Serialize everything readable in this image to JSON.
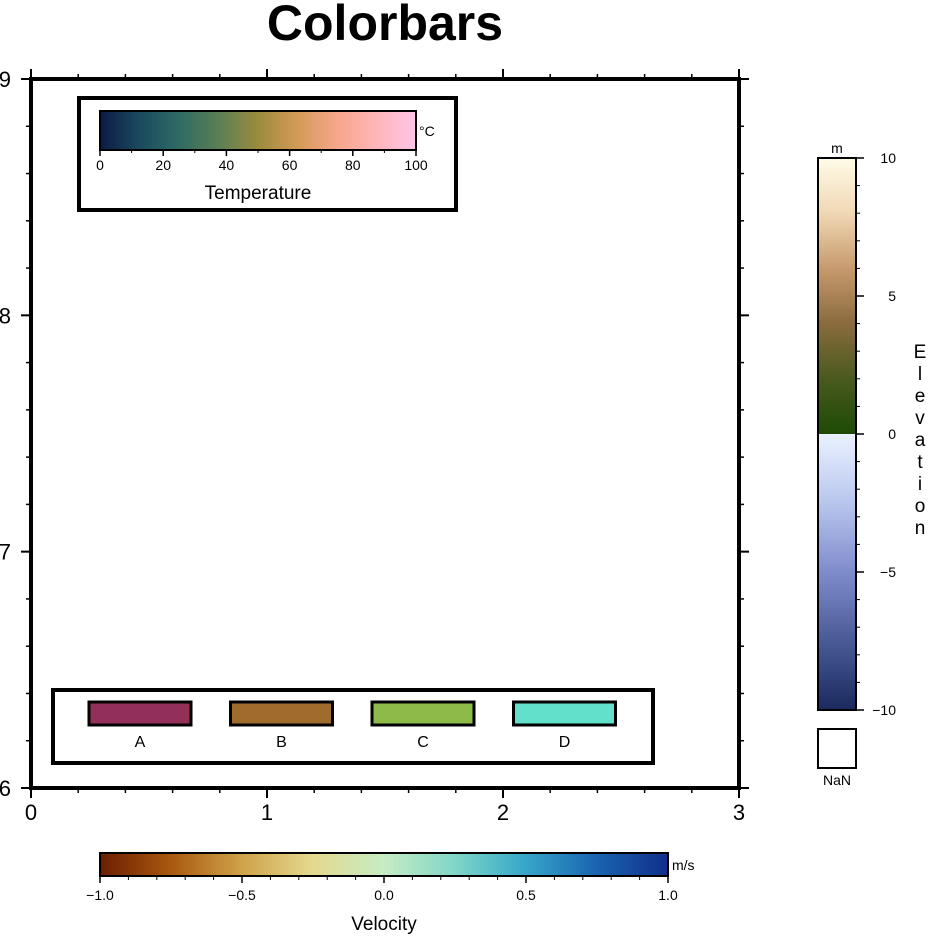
{
  "chart_data": {
    "type": "colorbar",
    "title": "Colorbars",
    "frame": {
      "xlim": [
        0,
        3
      ],
      "ylim": [
        6,
        9
      ],
      "x_ticks": [
        "0",
        "1",
        "2",
        "3"
      ],
      "y_ticks": [
        "6",
        "7",
        "8",
        "9"
      ],
      "grid": false
    },
    "temperature_bar": {
      "label": "Temperature",
      "unit": "°C",
      "range": [
        0,
        100
      ],
      "ticks": [
        "0",
        "20",
        "40",
        "60",
        "80",
        "100"
      ],
      "colors": [
        "#0b1a45",
        "#1a4a5e",
        "#2f6b64",
        "#5a7f55",
        "#9b8b3d",
        "#d49a58",
        "#f6a68a",
        "#ffb6b8",
        "#ffc4e8"
      ],
      "placement": "top-left inside frame"
    },
    "categorical_legend": {
      "entries": [
        {
          "label": "A",
          "color": "#93305a"
        },
        {
          "label": "B",
          "color": "#a06c2c"
        },
        {
          "label": "C",
          "color": "#8dbb49"
        },
        {
          "label": "D",
          "color": "#62e0cc"
        }
      ],
      "placement": "bottom inside frame"
    },
    "elevation_bar": {
      "label": "Elevation",
      "unit": "m",
      "range": [
        -10,
        10
      ],
      "ticks": [
        "10",
        "5",
        "0",
        "−5",
        "−10"
      ],
      "colors_top": [
        "#fffbe8",
        "#f0d8b4",
        "#c79a6d",
        "#8a6b3e",
        "#4a5a1e",
        "#1d4a06"
      ],
      "colors_bottom": [
        "#eaf1ff",
        "#b8c6ee",
        "#7f8ccc",
        "#4a5a96",
        "#1a2a5e"
      ],
      "nan_label": "NaN",
      "nan_color": "#ffffff",
      "placement": "right of frame, vertical"
    },
    "velocity_bar": {
      "label": "Velocity",
      "unit": "m/s",
      "range": [
        -1.0,
        1.0
      ],
      "ticks": [
        "−1.0",
        "−0.5",
        "0.0",
        "0.5",
        "1.0"
      ],
      "colors": [
        "#6b1e00",
        "#a9590f",
        "#cfa24a",
        "#e4d98f",
        "#c6ecc4",
        "#7fd6c8",
        "#36a6c8",
        "#1a63b0",
        "#102f8a"
      ],
      "placement": "bottom, horizontal"
    }
  }
}
